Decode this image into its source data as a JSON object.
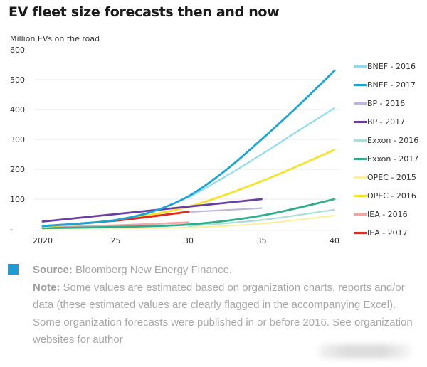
{
  "header": {
    "title": "EV fleet size forecasts then and now"
  },
  "footer": {
    "accent_color": "#1b9bd7",
    "source_label": "Source:",
    "source_text": " Bloomberg New Energy Finance.",
    "note_label": "Note:",
    "note_text": " Some values are estimated based on organization charts, reports and/or data (these estimated values are clearly flagged in the accompanying Excel). Some organization forecasts were published in or before 2016. See organization websites for author"
  },
  "chart_data": {
    "type": "line",
    "title": "EV fleet size forecasts then and now",
    "xlabel": "",
    "ylabel": "Million EVs on the road",
    "xlim": [
      2020,
      2040
    ],
    "ylim": [
      0,
      600
    ],
    "x_ticks": [
      2020,
      2025,
      2030,
      2035,
      2040
    ],
    "x_tick_labels": [
      "2020",
      "25",
      "30",
      "35",
      "40"
    ],
    "y_ticks": [
      0,
      100,
      200,
      300,
      400,
      500,
      600
    ],
    "y_tick_labels": [
      "-",
      "100",
      "200",
      "300",
      "400",
      "500",
      "600"
    ],
    "grid": true,
    "legend_position": "right",
    "series": [
      {
        "name": "BNEF - 2016",
        "color": "#8fdcf0",
        "width": 2.2,
        "x": [
          2030,
          2032.5,
          2035,
          2037.5,
          2040
        ],
        "values": [
          105,
          175,
          250,
          328,
          405
        ]
      },
      {
        "name": "BNEF - 2017",
        "color": "#1aa5d8",
        "width": 2.8,
        "x": [
          2020,
          2022.5,
          2025,
          2027.5,
          2030,
          2032.5,
          2035,
          2037.5,
          2040
        ],
        "values": [
          10,
          18,
          30,
          58,
          110,
          195,
          300,
          412,
          530
        ]
      },
      {
        "name": "BP - 2016",
        "color": "#c2b5dc",
        "width": 2.2,
        "x": [
          2030,
          2035
        ],
        "values": [
          57,
          70
        ]
      },
      {
        "name": "BP - 2017",
        "color": "#6a3fa0",
        "width": 2.8,
        "x": [
          2020,
          2025,
          2030,
          2035
        ],
        "values": [
          25,
          50,
          75,
          100
        ]
      },
      {
        "name": "Exxon - 2016",
        "color": "#a8dfd6",
        "width": 2.2,
        "x": [
          2030,
          2035,
          2040
        ],
        "values": [
          10,
          30,
          65
        ]
      },
      {
        "name": "Exxon - 2017",
        "color": "#2eae8e",
        "width": 2.8,
        "x": [
          2020,
          2025,
          2030,
          2035,
          2040
        ],
        "values": [
          3,
          7,
          15,
          45,
          100
        ]
      },
      {
        "name": "OPEC - 2015",
        "color": "#fbf0a0",
        "width": 2.2,
        "x": [
          2020,
          2025,
          2030,
          2035,
          2040
        ],
        "values": [
          1,
          2,
          5,
          18,
          45
        ]
      },
      {
        "name": "OPEC - 2016",
        "color": "#f5e22a",
        "width": 2.8,
        "x": [
          2020,
          2025,
          2030,
          2035,
          2040
        ],
        "values": [
          7,
          30,
          75,
          160,
          265
        ]
      },
      {
        "name": "IEA - 2016",
        "color": "#f2a7a7",
        "width": 2.8,
        "x": [
          2020,
          2025,
          2030
        ],
        "values": [
          5,
          12,
          22
        ]
      },
      {
        "name": "IEA - 2017",
        "color": "#e02b20",
        "width": 2.8,
        "x": [
          2020,
          2025,
          2030
        ],
        "values": [
          10,
          28,
          58
        ]
      }
    ]
  }
}
